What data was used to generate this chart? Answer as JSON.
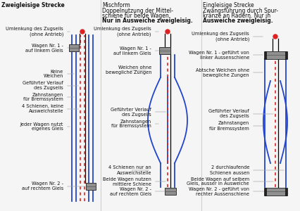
{
  "bg_color": "#f5f5f5",
  "blue": "#2244cc",
  "red_dot": "#dd2222",
  "black": "#000000",
  "gray": "#909090",
  "text_c": "#111111",
  "line_c": "#aaaaaa",
  "panel1_title": "Zweigleisige Strecke",
  "panel2_title_lines": [
    "Mischform",
    "Doppelnutzung der Mittel-",
    "schiene für beide Wagen.",
    "Nur in Ausweiche zweigleisig."
  ],
  "panel3_title_lines": [
    "Eingleisige Strecke",
    "Zwangsführung durch Spur-",
    "kränze an Rädern. Nur in",
    "Ausweiche zweigleisig."
  ],
  "labels1": [
    "Umlenkung des Zugseils\n(ohne Antrieb)",
    "Wagen Nr. 1 -\nauf linkem Gleis",
    "Keine\nWeichen",
    "Geführter Verlauf\ndes Zugseils",
    "Zahnstangen\nfür Bremssystem",
    "4 Schienen, keine\nAusweichstelle",
    "Jeder Wagen nutzt\neigenes Gleis",
    "Wagen Nr. 2 -\nauf rechtem Gleis"
  ],
  "labels2": [
    "Umlenkung des Zugseils\n(ohne Antrieb)",
    "Wagen Nr. 1 -\nauf linkem Gleis",
    "Weichen ohne\nbewegliche Zungen",
    "Geführter Verlauf\ndes Zugseils",
    "Zahnstangen\nfür Bremssystem",
    "4 Schienen nur an\nAusweichstelle",
    "Beide Wagen nutzen\nmittlere Schiene",
    "Wagen Nr. 2 -\nauf rechtem Gleis"
  ],
  "labels3": [
    "Umlenkung des Zugseils\n(ohne Antrieb)",
    "Wagen Nr. 1 - geführt von\nlinker Aussenschiene",
    "Abtsche Weichen ohne\nbewegliche Zungen",
    "Geführter Verlauf\ndes Zugseils",
    "Zahnstangen\nfür Bremssystem",
    "2 durchlaufende\nSchienen aussen",
    "Beide Wagen auf selbem\nGleis, ausser in Ausweiche",
    "Wagen Nr. 2 - geführt von\nrechter Aussenschiene"
  ]
}
